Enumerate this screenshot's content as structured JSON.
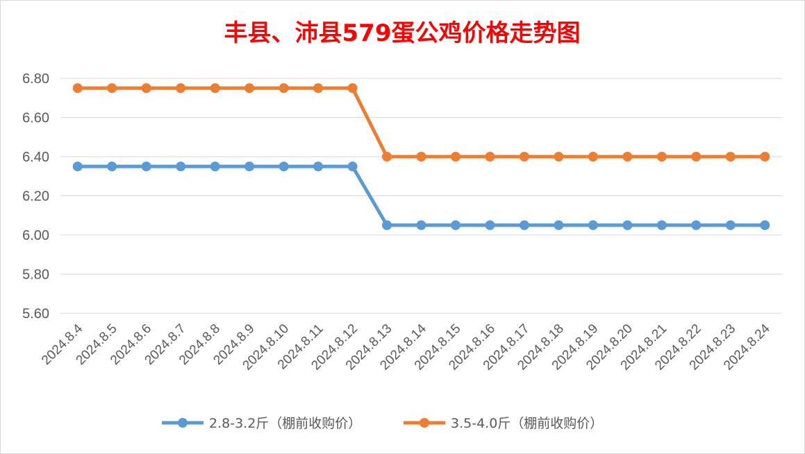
{
  "chart_data": {
    "type": "line",
    "title": "丰县、沛县579蛋公鸡价格走势图",
    "xlabel": "",
    "ylabel": "",
    "categories": [
      "2024.8.4",
      "2024.8.5",
      "2024.8.6",
      "2024.8.7",
      "2024.8.8",
      "2024.8.9",
      "2024.8.10",
      "2024.8.11",
      "2024.8.12",
      "2024.8.13",
      "2024.8.14",
      "2024.8.15",
      "2024.8.16",
      "2024.8.17",
      "2024.8.18",
      "2024.8.19",
      "2024.8.20",
      "2024.8.21",
      "2024.8.22",
      "2024.8.23",
      "2024.8.24"
    ],
    "ylim": [
      5.6,
      6.8
    ],
    "yticks": [
      "5.60",
      "5.80",
      "6.00",
      "6.20",
      "6.40",
      "6.60",
      "6.80"
    ],
    "grid": true,
    "legend_position": "bottom",
    "series": [
      {
        "name": "2.8-3.2斤（棚前收购价）",
        "color": "#5b9bd5",
        "values": [
          6.35,
          6.35,
          6.35,
          6.35,
          6.35,
          6.35,
          6.35,
          6.35,
          6.35,
          6.05,
          6.05,
          6.05,
          6.05,
          6.05,
          6.05,
          6.05,
          6.05,
          6.05,
          6.05,
          6.05,
          6.05
        ]
      },
      {
        "name": "3.5-4.0斤（棚前收购价）",
        "color": "#ed7d31",
        "values": [
          6.75,
          6.75,
          6.75,
          6.75,
          6.75,
          6.75,
          6.75,
          6.75,
          6.75,
          6.4,
          6.4,
          6.4,
          6.4,
          6.4,
          6.4,
          6.4,
          6.4,
          6.4,
          6.4,
          6.4,
          6.4
        ]
      }
    ],
    "title_color": "#ff0000"
  }
}
